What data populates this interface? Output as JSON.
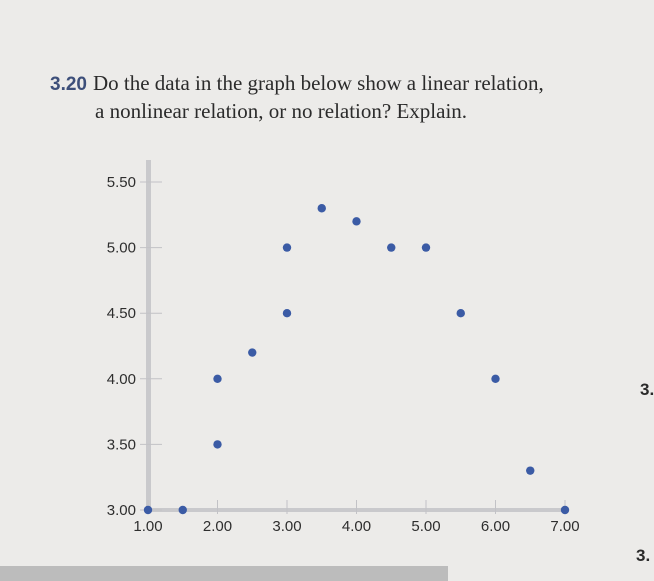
{
  "question": {
    "number": "3.20",
    "line1": "Do the data in the graph below show a linear relation,",
    "line2": "a nonlinear relation, or no relation? Explain."
  },
  "edge_labels": {
    "right_top": "3.",
    "right_bottom": "3."
  },
  "chart_data": {
    "type": "scatter",
    "title": "",
    "xlabel": "",
    "ylabel": "",
    "xlim": [
      1.0,
      7.0
    ],
    "ylim": [
      3.0,
      5.5
    ],
    "x_ticks": [
      "1.00",
      "2.00",
      "3.00",
      "4.00",
      "5.00",
      "6.00",
      "7.00"
    ],
    "y_ticks": [
      "3.00",
      "3.50",
      "4.00",
      "4.50",
      "5.00",
      "5.50"
    ],
    "grid": false,
    "point_color": "#3b5ba5",
    "points": [
      {
        "x": 1.0,
        "y": 3.0
      },
      {
        "x": 1.5,
        "y": 3.0
      },
      {
        "x": 2.0,
        "y": 3.5
      },
      {
        "x": 2.0,
        "y": 4.0
      },
      {
        "x": 2.5,
        "y": 4.2
      },
      {
        "x": 3.0,
        "y": 4.5
      },
      {
        "x": 3.0,
        "y": 5.0
      },
      {
        "x": 3.5,
        "y": 5.3
      },
      {
        "x": 4.0,
        "y": 5.2
      },
      {
        "x": 4.5,
        "y": 5.0
      },
      {
        "x": 5.0,
        "y": 5.0
      },
      {
        "x": 5.5,
        "y": 4.5
      },
      {
        "x": 6.0,
        "y": 4.0
      },
      {
        "x": 6.5,
        "y": 3.3
      },
      {
        "x": 7.0,
        "y": 3.0
      }
    ]
  }
}
